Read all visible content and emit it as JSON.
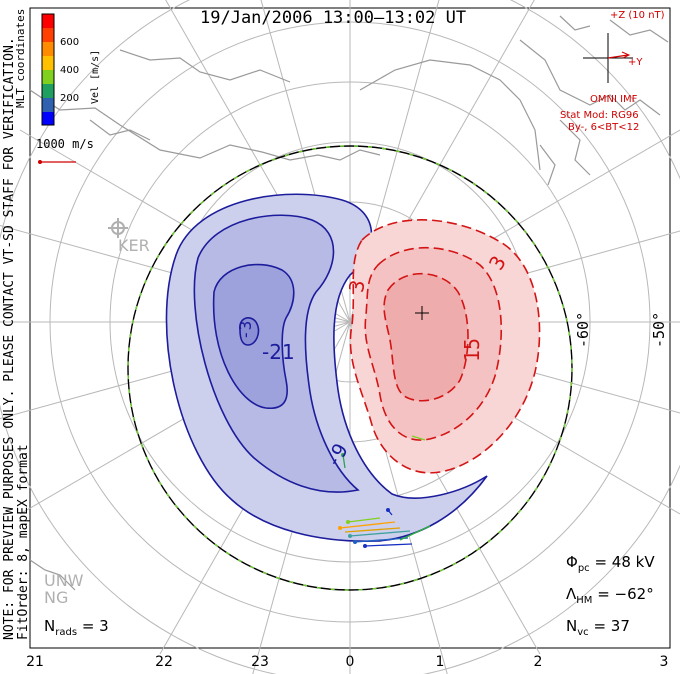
{
  "title": "19/Jan/2006 13:00–13:02 UT",
  "side_note": {
    "line1": "NOTE: FOR PREVIEW PURPOSES ONLY. PLEASE CONTACT VT-SD STAFF FOR VERIFICATION.",
    "line2": "FitOrder: 8, mapEX format"
  },
  "coordinates_label": "MLT coordinates",
  "colorbar": {
    "label": "Vel [m/s]",
    "ticks": [
      "600",
      "400",
      "200"
    ],
    "colors": [
      "#ff0000",
      "#ff6a00",
      "#ffb000",
      "#80d020",
      "#20a040",
      "#2080a0",
      "#3050c0",
      "#0000ff"
    ]
  },
  "scale_vector": "1000 m/s",
  "imf": {
    "z_label": "+Z (10 nT)",
    "y_label": "+Y",
    "source": "OMNI IMF",
    "stat_mod": "Stat Mod: RG96",
    "bin": "By-, 6<BT<12"
  },
  "stations": [
    "KER",
    "UNW",
    "NG"
  ],
  "latitude_labels": [
    "-60°",
    "-50°"
  ],
  "contour_labels": {
    "neg_outer": "-3",
    "neg_mid": "-9",
    "neg_inner": "-21",
    "pos_outer_left": "3",
    "pos_outer_right": "3",
    "pos_inner": "15"
  },
  "stats": {
    "nrads_label": "N",
    "nrads_sub": "rads",
    "nrads_value": "= 3",
    "phi_label": "Φ",
    "phi_sub": "pc",
    "phi_value": "= 48 kV",
    "lambda_label": "Λ",
    "lambda_sub": "HM",
    "lambda_value": "= −62°",
    "nvc_label": "N",
    "nvc_sub": "vc",
    "nvc_value": "= 37"
  },
  "mlt_labels": [
    "21",
    "22",
    "23",
    "0",
    "1",
    "2",
    "3"
  ],
  "accent_colors": {
    "negative": "#1a1aa0",
    "positive": "#d01010",
    "boundary": "#70d030"
  }
}
